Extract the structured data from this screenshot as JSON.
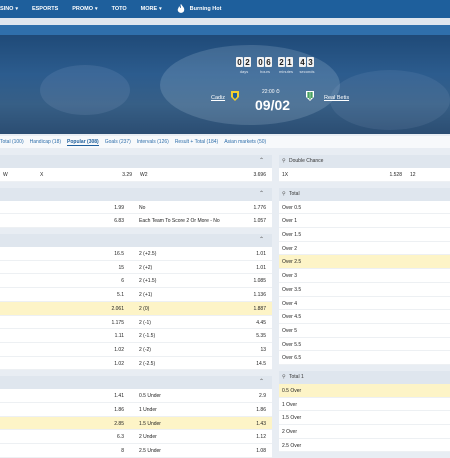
{
  "topbar": {
    "items": [
      {
        "label": "SINO",
        "chevron": true
      },
      {
        "label": "ESPORTS",
        "chevron": false
      },
      {
        "label": "PROMO",
        "chevron": true
      },
      {
        "label": "TOTO",
        "chevron": false
      },
      {
        "label": "MORE",
        "chevron": true
      }
    ],
    "burning": "Burning Hot"
  },
  "hero": {
    "timer": {
      "groups": [
        {
          "digits": [
            "0",
            "2"
          ],
          "label": "days"
        },
        {
          "digits": [
            "0",
            "6"
          ],
          "label": "hours"
        },
        {
          "digits": [
            "2",
            "1"
          ],
          "label": "minutes"
        },
        {
          "digits": [
            "4",
            "3"
          ],
          "label": "seconds"
        }
      ]
    },
    "kickoff": "22:00",
    "date": "09/02",
    "home": "Cadiz",
    "away": "Real Betis"
  },
  "tabs": [
    "Total (100)",
    "Handicap (18)",
    "Popular (308)",
    "Goals (237)",
    "Intervals (126)",
    "Result + Total (184)",
    "Asian markets (50)"
  ],
  "active_tab": 2,
  "left": {
    "sections": [
      {
        "rows": [
          [
            "W",
            "X",
            "3.29",
            "W2",
            "3.696"
          ]
        ]
      },
      {
        "rows": [
          [
            "",
            "1.99",
            "No",
            "1.776"
          ],
          [
            "",
            "6.83",
            "Each Team To Score 2 Or More - No",
            "1.057"
          ]
        ]
      },
      {
        "rows": [
          [
            "",
            "16.5",
            "2 (+2.5)",
            "1.01"
          ],
          [
            "",
            "15",
            "2 (+2)",
            "1.01"
          ],
          [
            "",
            "6",
            "2 (+1.5)",
            "1.085"
          ],
          [
            "",
            "5.1",
            "2 (+1)",
            "1.136"
          ],
          [
            "",
            "2.061",
            "2 (0)",
            "1.887"
          ],
          [
            "",
            "1.175",
            "2 (-1)",
            "4.45"
          ],
          [
            "",
            "1.11",
            "2 (-1.5)",
            "5.35"
          ],
          [
            "",
            "1.02",
            "2 (-2)",
            "13"
          ],
          [
            "",
            "1.02",
            "2 (-2.5)",
            "14.5"
          ]
        ]
      },
      {
        "rows": [
          [
            "",
            "1.41",
            "0.5 Under",
            "2.9"
          ],
          [
            "",
            "1.86",
            "1 Under",
            "1.86"
          ],
          [
            "",
            "2.85",
            "1.5 Under",
            "1.43"
          ],
          [
            "",
            "6.3",
            "2 Under",
            "1.12"
          ],
          [
            "",
            "8",
            "2.5 Under",
            "1.08"
          ]
        ]
      }
    ]
  },
  "right": {
    "double_chance": {
      "title": "Double Chance",
      "row": [
        "1X",
        "1.528",
        "12"
      ]
    },
    "total": {
      "title": "Total",
      "rows": [
        "Over 0.5",
        "Over 1",
        "Over 1.5",
        "Over 2",
        "Over 2.5",
        "Over 3",
        "Over 3.5",
        "Over 4",
        "Over 4.5",
        "Over 5",
        "Over 5.5",
        "Over 6.5"
      ]
    },
    "total1": {
      "title": "Total 1",
      "rows": [
        "0.5 Over",
        "1 Over",
        "1.5 Over",
        "2 Over",
        "2.5 Over"
      ]
    }
  },
  "colors": {
    "brand": "#1e5f9c",
    "highlight": "#fdf4c7"
  }
}
